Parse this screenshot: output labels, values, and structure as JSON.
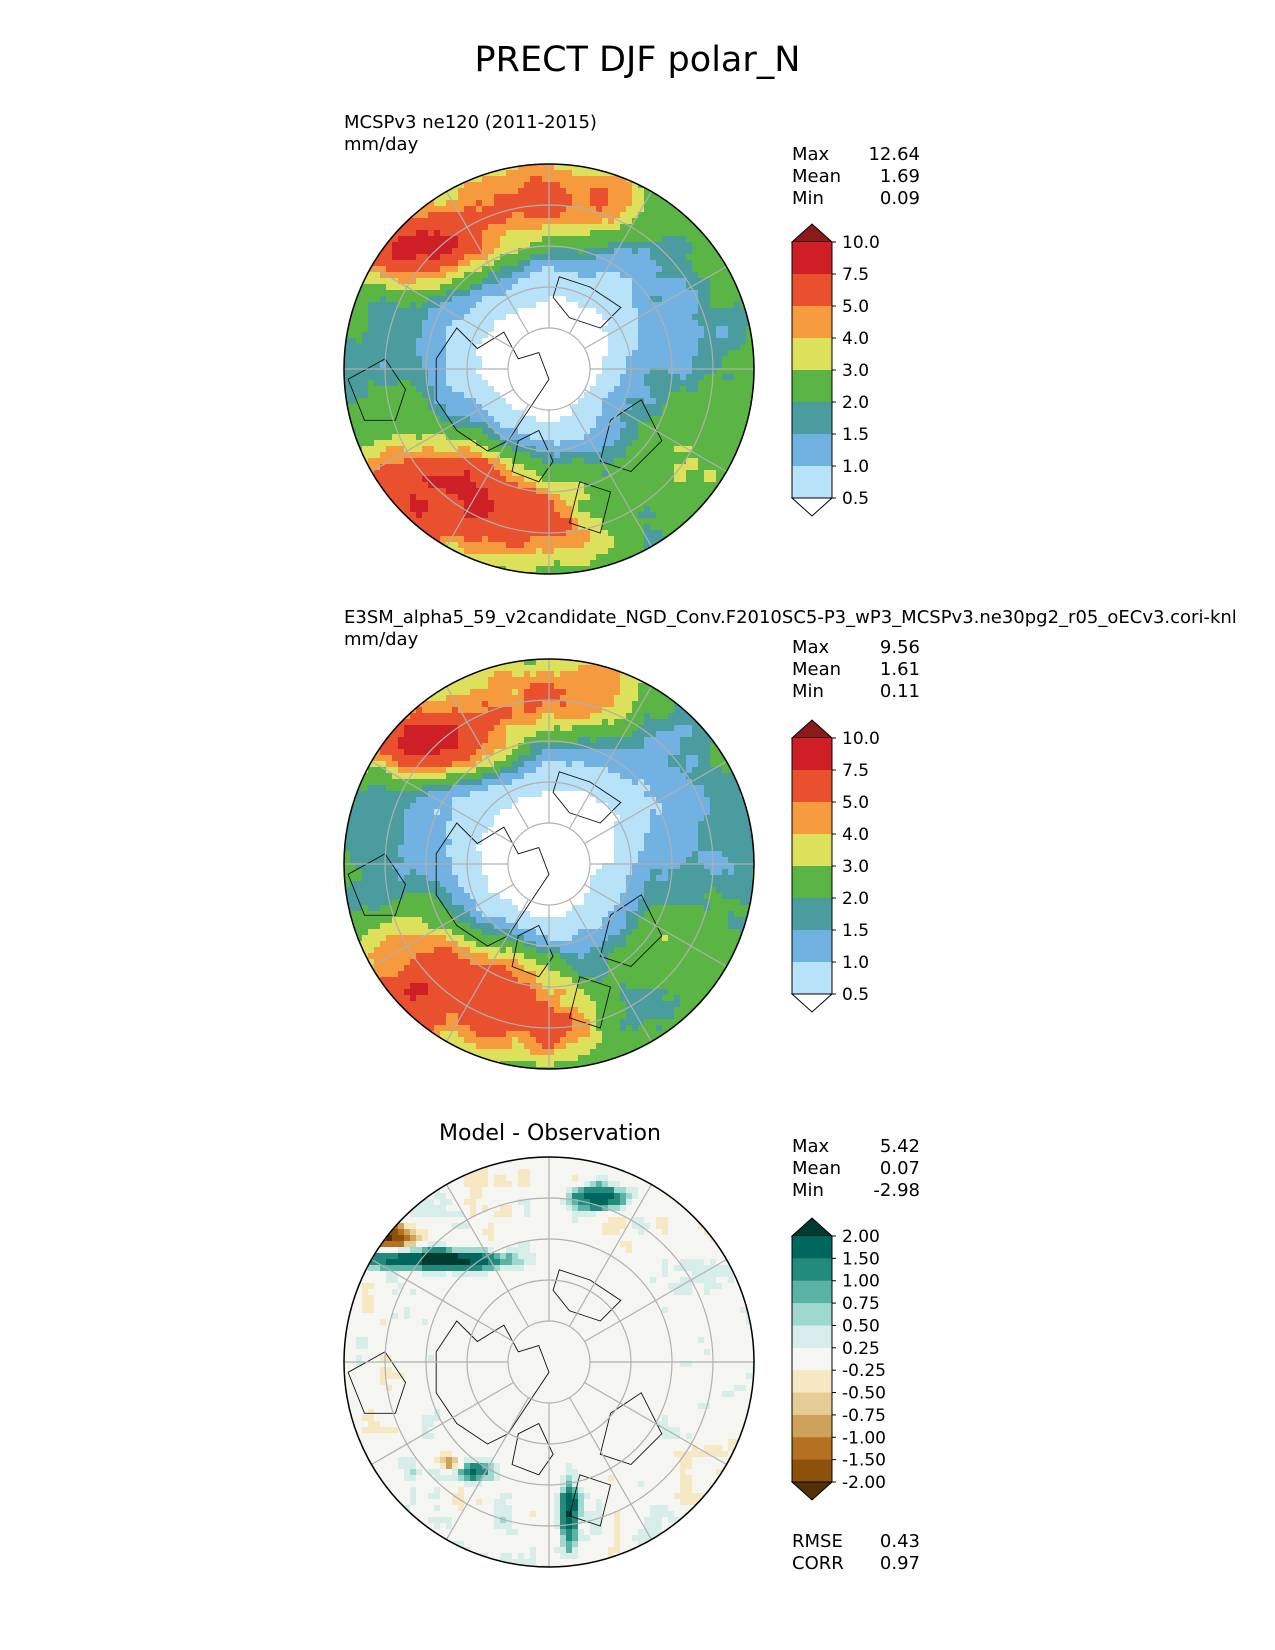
{
  "title": "PRECT DJF polar_N",
  "panels": [
    {
      "label": "MCSPv3 ne120 (2011-2015)",
      "units": "mm/day",
      "stats": [
        {
          "name": "Max",
          "value": "12.64"
        },
        {
          "name": "Mean",
          "value": "1.69"
        },
        {
          "name": "Min",
          "value": "0.09"
        }
      ]
    },
    {
      "label": "E3SM_alpha5_59_v2candidate_NGD_Conv.F2010SC5-P3_wP3_MCSPv3.ne30pg2_r05_oECv3.cori-knl",
      "units": "mm/day",
      "stats": [
        {
          "name": "Max",
          "value": "9.56"
        },
        {
          "name": "Mean",
          "value": "1.61"
        },
        {
          "name": "Min",
          "value": "0.11"
        }
      ]
    },
    {
      "label": "Model - Observation",
      "units": "",
      "stats": [
        {
          "name": "Max",
          "value": "5.42"
        },
        {
          "name": "Mean",
          "value": "0.07"
        },
        {
          "name": "Min",
          "value": "-2.98"
        }
      ],
      "extra_stats": [
        {
          "name": "RMSE",
          "value": "0.43"
        },
        {
          "name": "CORR",
          "value": "0.97"
        }
      ]
    }
  ],
  "chart_data": [
    {
      "type": "heatmap",
      "projection": "north polar stereographic",
      "title": "MCSPv3 ne120 (2011-2015)",
      "units": "mm/day",
      "colorbar_levels": [
        0.5,
        1.0,
        1.5,
        2.0,
        3.0,
        4.0,
        5.0,
        7.5,
        10.0
      ],
      "colorbar_labels": [
        "0.5",
        "1.0",
        "1.5",
        "2.0",
        "3.0",
        "4.0",
        "5.0",
        "7.5",
        "10.0"
      ],
      "colorbar_colors": [
        "#ffffff",
        "#b8e2f8",
        "#72b2e2",
        "#4a9c9e",
        "#5bb545",
        "#dde05a",
        "#f69a3e",
        "#e8502e",
        "#cd1f25",
        "#8b1a1a"
      ],
      "extend": "both",
      "max": 12.64,
      "mean": 1.69,
      "min": 0.09
    },
    {
      "type": "heatmap",
      "projection": "north polar stereographic",
      "title": "E3SM_alpha5_59_v2candidate_NGD_Conv.F2010SC5-P3_wP3_MCSPv3.ne30pg2_r05_oECv3.cori-knl",
      "units": "mm/day",
      "colorbar_levels": [
        0.5,
        1.0,
        1.5,
        2.0,
        3.0,
        4.0,
        5.0,
        7.5,
        10.0
      ],
      "colorbar_labels": [
        "0.5",
        "1.0",
        "1.5",
        "2.0",
        "3.0",
        "4.0",
        "5.0",
        "7.5",
        "10.0"
      ],
      "colorbar_colors": [
        "#ffffff",
        "#b8e2f8",
        "#72b2e2",
        "#4a9c9e",
        "#5bb545",
        "#dde05a",
        "#f69a3e",
        "#e8502e",
        "#cd1f25",
        "#8b1a1a"
      ],
      "extend": "both",
      "max": 9.56,
      "mean": 1.61,
      "min": 0.11
    },
    {
      "type": "heatmap",
      "projection": "north polar stereographic",
      "title": "Model - Observation",
      "colorbar_levels": [
        -2.0,
        -1.5,
        -1.0,
        -0.75,
        -0.5,
        -0.25,
        0.25,
        0.5,
        0.75,
        1.0,
        1.5,
        2.0
      ],
      "colorbar_labels": [
        "-2.00",
        "-1.50",
        "-1.00",
        "-0.75",
        "-0.50",
        "-0.25",
        "0.25",
        "0.50",
        "0.75",
        "1.00",
        "1.50",
        "2.00"
      ],
      "colorbar_colors": [
        "#543005",
        "#8c510a",
        "#b57122",
        "#cfa25a",
        "#e6cd94",
        "#f6e8c3",
        "#f5f5f2",
        "#d6ede9",
        "#9ed8ce",
        "#5bb3a5",
        "#238a7e",
        "#01665e",
        "#003c30"
      ],
      "extend": "both",
      "max": 5.42,
      "mean": 0.07,
      "min": -2.98,
      "rmse": 0.43,
      "corr": 0.97
    }
  ]
}
